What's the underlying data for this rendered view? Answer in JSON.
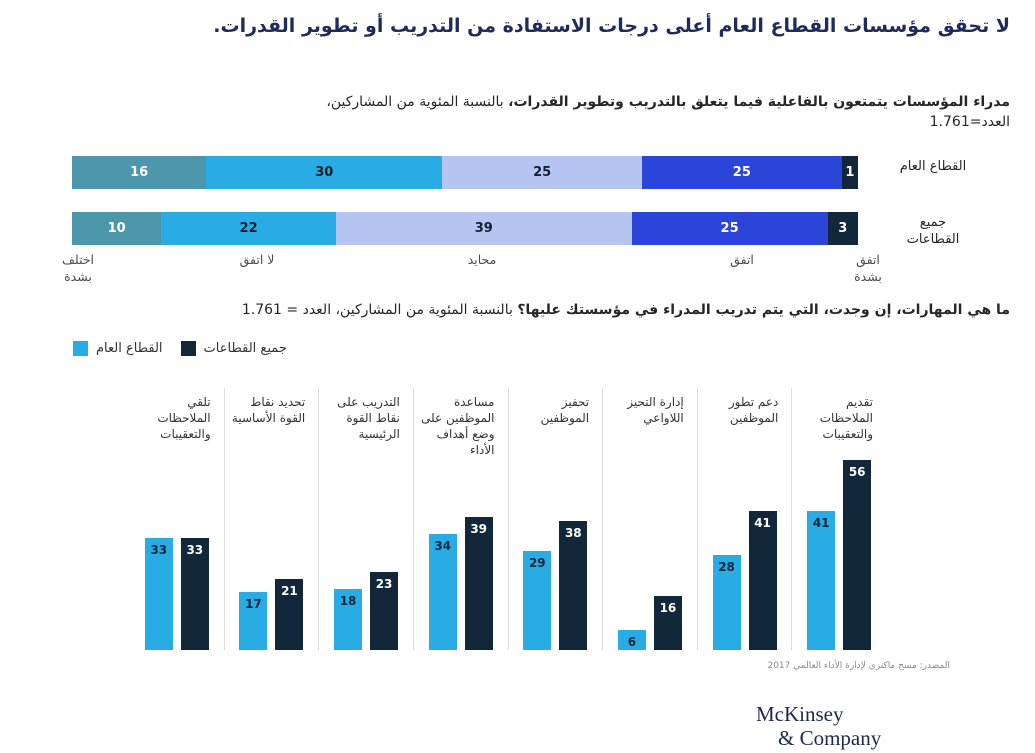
{
  "page": {
    "title": "لا تحقق مؤسسات القطاع العام أعلى درجات الاستفادة من التدريب أو تطوير القدرات.",
    "source_note": "المصدر: مسح ماكنزي لإدارة الأداء العالمي 2017",
    "logo_line1": "McKinsey",
    "logo_line2": "& Company"
  },
  "colors": {
    "title_navy": "#1f2b5c",
    "teal": "#4d97ac",
    "cyan": "#29abe4",
    "lavender": "#b6c4f1",
    "royal_blue": "#2b45d8",
    "dark_navy": "#12283a",
    "divider_gray": "#dcdcdc"
  },
  "chart_data": [
    {
      "type": "bar",
      "subtype": "horizontal-stacked",
      "subtitle_bold": "مدراء المؤسسات يتمتعون بالفاعلية فيما يتعلق بالتدريب وتطوير القدرات،",
      "subtitle_rest": " بالنسبة المئوية من المشاركين،\nالعدد=1.761",
      "scale_labels": [
        "اختلف\nبشدة",
        "لا اتفق",
        "محايد",
        "اتفق",
        "اتفق\nبشدة"
      ],
      "segment_colors": [
        "#4d97ac",
        "#29abe4",
        "#b6c4f1",
        "#2b45d8",
        "#12283a"
      ],
      "segment_text_colors": [
        "#ffffff",
        "#14202e",
        "#14202e",
        "#ffffff",
        "#ffffff"
      ],
      "rows": [
        {
          "label": "القطاع العام",
          "segments": [
            {
              "name": "اختلف بشدة",
              "value": 16
            },
            {
              "name": "لا اتفق",
              "value": 30
            },
            {
              "name": "محايد",
              "value": 25
            },
            {
              "name": "اتفق",
              "value": 25
            },
            {
              "name": "اتفق بشدة",
              "value": 1
            }
          ]
        },
        {
          "label": "جميع القطاعات",
          "segments": [
            {
              "name": "اختلف بشدة",
              "value": 10
            },
            {
              "name": "لا اتفق",
              "value": 22
            },
            {
              "name": "محايد",
              "value": 39
            },
            {
              "name": "اتفق",
              "value": 25
            },
            {
              "name": "اتفق بشدة",
              "value": 3
            }
          ]
        }
      ]
    },
    {
      "type": "bar",
      "subtype": "grouped-vertical",
      "title_bold": "ما هي المهارات، إن وجدت، التي يتم تدريب المدراء في مؤسستك عليها؟",
      "title_rest": " بالنسبة المئوية من المشاركين، العدد = 1.761",
      "categories": [
        [
          "تلقي",
          "الملاحظات",
          "والتعقيبات"
        ],
        [
          "تحديد نقاط",
          "القوة الأساسية"
        ],
        [
          "التدريب على",
          "نقاط القوة",
          "الرئيسية"
        ],
        [
          "مساعدة",
          "الموظفين على",
          "وضع أهداف الأداء"
        ],
        [
          "تحفيز",
          "الموظفين"
        ],
        [
          "إدارة التحيز",
          "اللاواعي"
        ],
        [
          "دعم تطور",
          "الموظفين"
        ],
        [
          "تقديم",
          "الملاحظات",
          "والتعقيبات"
        ]
      ],
      "series": [
        {
          "name": "القطاع العام",
          "color": "#29abe4",
          "value_color": "#14283c",
          "values": [
            33,
            17,
            18,
            34,
            29,
            6,
            28,
            41
          ]
        },
        {
          "name": "جميع القطاعات",
          "color": "#12283a",
          "value_color": "#ffffff",
          "values": [
            33,
            21,
            23,
            39,
            38,
            16,
            41,
            56
          ]
        }
      ],
      "ylim": [
        0,
        60
      ],
      "grid": false,
      "legend_position": "top-left"
    }
  ]
}
